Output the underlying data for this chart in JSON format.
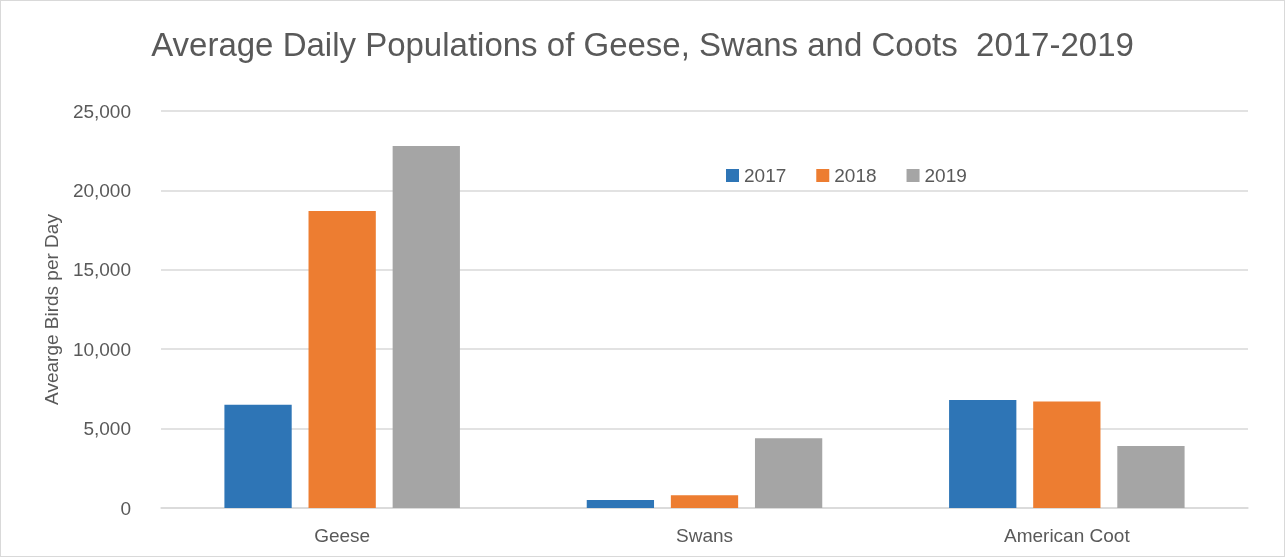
{
  "chart_data": {
    "type": "bar",
    "title": "Average Daily Populations of Geese, Swans and Coots  2017-2019",
    "ylabel": "Avearge Birds per Day",
    "categories": [
      "Geese",
      "Swans",
      "American Coot"
    ],
    "series": [
      {
        "name": "2017",
        "color": "#2e75b6",
        "values": [
          6500,
          500,
          6800
        ]
      },
      {
        "name": "2018",
        "color": "#ed7d31",
        "values": [
          18700,
          800,
          6700
        ]
      },
      {
        "name": "2019",
        "color": "#a5a5a5",
        "values": [
          22800,
          4400,
          3900
        ]
      }
    ],
    "ylim": [
      0,
      25000
    ],
    "yticks": [
      0,
      {
        "value": 5000,
        "label": "5,000"
      },
      {
        "value": 10000,
        "label": "10,000"
      },
      {
        "value": 15000,
        "label": "15,000"
      },
      {
        "value": 20000,
        "label": "20,000"
      },
      {
        "value": 25000,
        "label": "25,000"
      }
    ],
    "grid": "y",
    "legend": "top"
  }
}
